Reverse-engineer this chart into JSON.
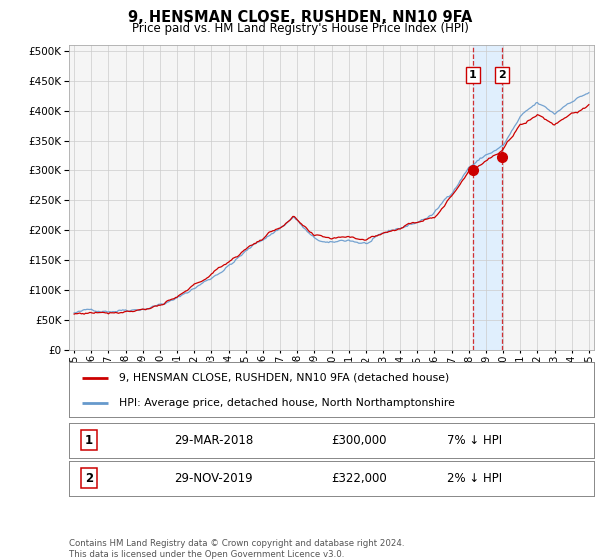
{
  "title": "9, HENSMAN CLOSE, RUSHDEN, NN10 9FA",
  "subtitle": "Price paid vs. HM Land Registry's House Price Index (HPI)",
  "ytick_values": [
    0,
    50000,
    100000,
    150000,
    200000,
    250000,
    300000,
    350000,
    400000,
    450000,
    500000
  ],
  "ylim": [
    0,
    510000
  ],
  "xlim_start": 1994.7,
  "xlim_end": 2025.3,
  "hpi_color": "#6699cc",
  "price_color": "#cc0000",
  "transactions": [
    {
      "id": 1,
      "date_num": 2018.24,
      "price": 300000,
      "label": "29-MAR-2018",
      "pct": "7% ↓ HPI"
    },
    {
      "id": 2,
      "date_num": 2019.91,
      "price": 322000,
      "label": "29-NOV-2019",
      "pct": "2% ↓ HPI"
    }
  ],
  "legend_price_label": "9, HENSMAN CLOSE, RUSHDEN, NN10 9FA (detached house)",
  "legend_hpi_label": "HPI: Average price, detached house, North Northamptonshire",
  "footnote": "Contains HM Land Registry data © Crown copyright and database right 2024.\nThis data is licensed under the Open Government Licence v3.0.",
  "background_color": "#f5f5f5",
  "grid_color": "#cccccc",
  "highlight_region_color": "#ddeeff",
  "xtick_years": [
    1995,
    1996,
    1997,
    1998,
    1999,
    2000,
    2001,
    2002,
    2003,
    2004,
    2005,
    2006,
    2007,
    2008,
    2009,
    2010,
    2011,
    2012,
    2013,
    2014,
    2015,
    2016,
    2017,
    2018,
    2019,
    2020,
    2021,
    2022,
    2023,
    2024,
    2025
  ]
}
